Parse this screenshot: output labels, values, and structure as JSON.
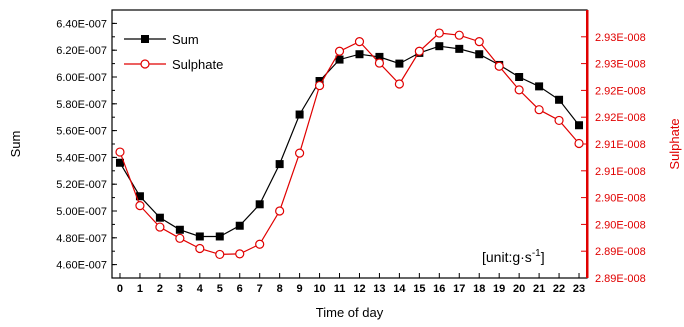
{
  "chart_data": {
    "type": "line",
    "xlabel": "Time of day",
    "ylabel_left": "Sum",
    "ylabel_right": "Sulphate",
    "annotation": "[unit:g·s",
    "annotation_exp": "-1",
    "annotation_end": "]",
    "x": [
      0,
      1,
      2,
      3,
      4,
      5,
      6,
      7,
      8,
      9,
      10,
      11,
      12,
      13,
      14,
      15,
      16,
      17,
      18,
      19,
      20,
      21,
      22,
      23
    ],
    "xlim": [
      -0.4,
      23.4
    ],
    "ylim_left": [
      4.5e-07,
      6.5e-07
    ],
    "ylim_right": [
      2.885e-08,
      2.935e-08
    ],
    "left_ticks": [
      "4.60E-007",
      "4.80E-007",
      "5.00E-007",
      "5.20E-007",
      "5.40E-007",
      "5.60E-007",
      "5.80E-007",
      "6.00E-007",
      "6.20E-007",
      "6.40E-007"
    ],
    "left_tick_values": [
      4.6e-07,
      4.8e-07,
      5e-07,
      5.2e-07,
      5.4e-07,
      5.6e-07,
      5.8e-07,
      6e-07,
      6.2e-07,
      6.4e-07
    ],
    "right_ticks": [
      "2.89E-008",
      "2.89E-008",
      "2.90E-008",
      "2.90E-008",
      "2.91E-008",
      "2.91E-008",
      "2.92E-008",
      "2.92E-008",
      "2.93E-008",
      "2.93E-008"
    ],
    "right_tick_values": [
      2.885e-08,
      2.89e-08,
      2.895e-08,
      2.9e-08,
      2.905e-08,
      2.91e-08,
      2.915e-08,
      2.92e-08,
      2.925e-08,
      2.93e-08
    ],
    "legend_position": "top-left",
    "series": [
      {
        "name": "Sum",
        "axis": "left",
        "color": "#000000",
        "marker": "filled-square",
        "values": [
          5.36e-07,
          5.11e-07,
          4.95e-07,
          4.86e-07,
          4.81e-07,
          4.81e-07,
          4.89e-07,
          5.05e-07,
          5.35e-07,
          5.72e-07,
          5.97e-07,
          6.13e-07,
          6.17e-07,
          6.15e-07,
          6.1e-07,
          6.18e-07,
          6.23e-07,
          6.21e-07,
          6.17e-07,
          6.09e-07,
          6e-07,
          5.93e-07,
          5.83e-07,
          5.64e-07
        ]
      },
      {
        "name": "Sulphate",
        "axis": "right",
        "color": "#e00000",
        "marker": "open-circle",
        "values": [
          2.9085e-08,
          2.8985e-08,
          2.8945e-08,
          2.8924e-08,
          2.8905e-08,
          2.8894e-08,
          2.8895e-08,
          2.8913e-08,
          2.8975e-08,
          2.9083e-08,
          2.9209e-08,
          2.9273e-08,
          2.9291e-08,
          2.9251e-08,
          2.9212e-08,
          2.9273e-08,
          2.9307e-08,
          2.9303e-08,
          2.9291e-08,
          2.9245e-08,
          2.9201e-08,
          2.9164e-08,
          2.9144e-08,
          2.9101e-08
        ]
      }
    ]
  }
}
